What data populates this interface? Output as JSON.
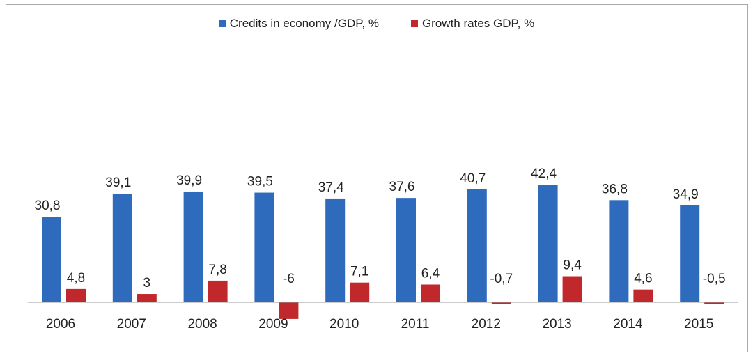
{
  "chart_data": {
    "type": "bar",
    "categories": [
      "2006",
      "2007",
      "2008",
      "2009",
      "2010",
      "2011",
      "2012",
      "2013",
      "2014",
      "2015"
    ],
    "series": [
      {
        "name": "Credits in economy /GDP, %",
        "color": "#2f6bbd",
        "values": [
          30.8,
          39.1,
          39.9,
          39.5,
          37.4,
          37.6,
          40.7,
          42.4,
          36.8,
          34.9
        ],
        "labels": [
          "30,8",
          "39,1",
          "39,9",
          "39,5",
          "37,4",
          "37,6",
          "40,7",
          "42,4",
          "36,8",
          "34,9"
        ]
      },
      {
        "name": "Growth rates GDP, %",
        "color": "#c0282b",
        "values": [
          4.8,
          3,
          7.8,
          -6,
          7.1,
          6.4,
          -0.7,
          9.4,
          4.6,
          -0.5
        ],
        "labels": [
          "4,8",
          "3",
          "7,8",
          "-6",
          "7,1",
          "6,4",
          "-0,7",
          "9,4",
          "4,6",
          "-0,5"
        ]
      }
    ],
    "legend_position": "top-center",
    "grid": false
  }
}
